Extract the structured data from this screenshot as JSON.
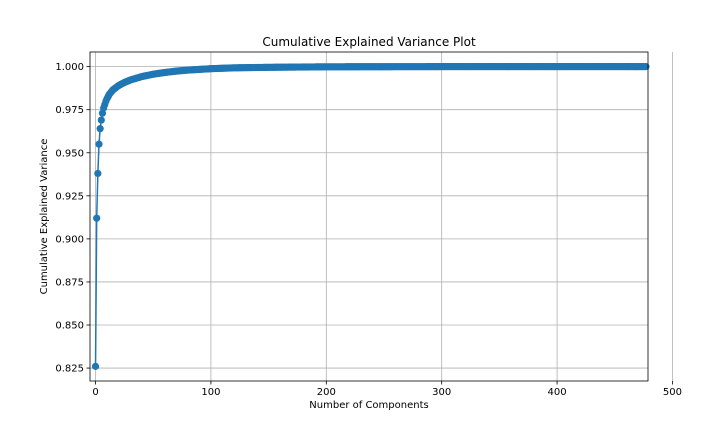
{
  "chart_data": {
    "type": "line",
    "title": "Cumulative Explained Variance Plot",
    "xlabel": "Number of Components",
    "ylabel": "Cumulative Explained Variance",
    "xlim": [
      -4.8,
      478.8
    ],
    "ylim": [
      0.8175,
      1.0085
    ],
    "xticks": [
      0,
      100,
      200,
      300,
      400,
      500
    ],
    "yticks": [
      0.825,
      0.85,
      0.875,
      0.9,
      0.925,
      0.95,
      0.975,
      1.0
    ],
    "xtick_labels": [
      "0",
      "100",
      "200",
      "300",
      "400",
      "500"
    ],
    "ytick_labels": [
      "0.825",
      "0.850",
      "0.875",
      "0.900",
      "0.925",
      "0.950",
      "0.975",
      "1.000"
    ],
    "grid": true,
    "marker": "circle",
    "color": "#1f77b4",
    "series": [
      {
        "name": "",
        "x_start": 0,
        "x_end": 477,
        "key_points": [
          [
            0,
            0.826
          ],
          [
            1,
            0.912
          ],
          [
            2,
            0.938
          ],
          [
            3,
            0.955
          ],
          [
            4,
            0.964
          ],
          [
            5,
            0.969
          ],
          [
            6,
            0.973
          ],
          [
            7,
            0.976
          ],
          [
            8,
            0.978
          ],
          [
            9,
            0.98
          ],
          [
            10,
            0.9815
          ],
          [
            12,
            0.984
          ],
          [
            15,
            0.9865
          ],
          [
            20,
            0.989
          ],
          [
            25,
            0.9908
          ],
          [
            30,
            0.9922
          ],
          [
            40,
            0.9942
          ],
          [
            50,
            0.9956
          ],
          [
            60,
            0.9966
          ],
          [
            70,
            0.9974
          ],
          [
            80,
            0.998
          ],
          [
            100,
            0.9988
          ],
          [
            120,
            0.9993
          ],
          [
            150,
            0.9996
          ],
          [
            200,
            0.9999
          ],
          [
            300,
            1.0
          ],
          [
            477,
            1.0
          ]
        ]
      }
    ]
  }
}
